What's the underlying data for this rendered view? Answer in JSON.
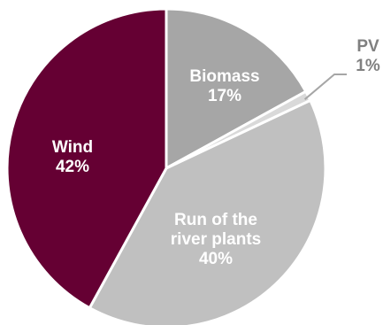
{
  "chart_data": {
    "type": "pie",
    "slices": [
      {
        "label": "Biomass",
        "value": 17,
        "value_label": "17%",
        "color": "#a6a6a6",
        "text_color": "#ffffff"
      },
      {
        "label": "PV",
        "value": 1,
        "value_label": "1%",
        "color": "#d9d9d9",
        "text_color": "#808080"
      },
      {
        "label": "Run of the river plants",
        "value": 40,
        "value_label": "40%",
        "color": "#c0c0c0",
        "text_color": "#ffffff"
      },
      {
        "label": "Wind",
        "value": 42,
        "value_label": "42%",
        "color": "#650033",
        "text_color": "#ffffff"
      }
    ],
    "start_angle_deg": 0,
    "direction": "clockwise",
    "legend": "none"
  }
}
